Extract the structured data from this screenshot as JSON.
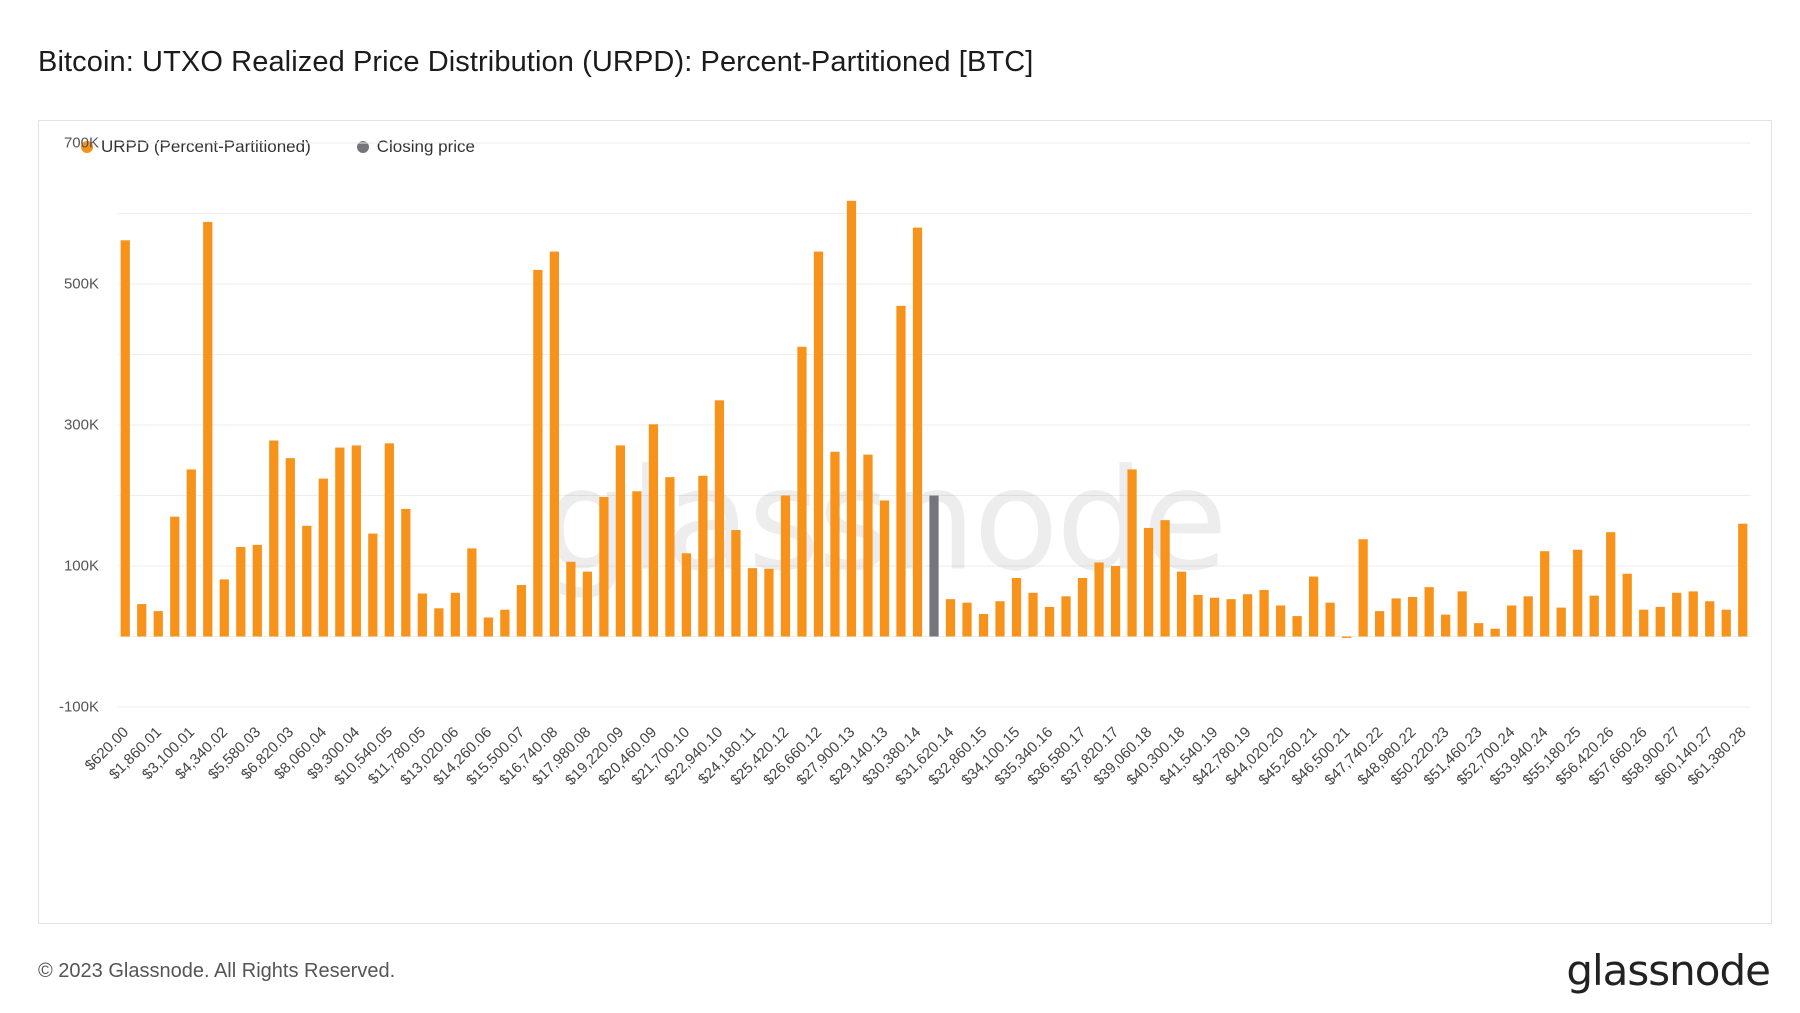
{
  "header": {
    "title": "Bitcoin: UTXO Realized Price Distribution (URPD): Percent-Partitioned [BTC]"
  },
  "legend": [
    {
      "label": "URPD (Percent-Partitioned)",
      "color": "#f7931a"
    },
    {
      "label": "Closing price",
      "color": "#76767a"
    }
  ],
  "watermark": "glassnode",
  "footer": {
    "copyright": "© 2023 Glassnode. All Rights Reserved.",
    "logo": "glassnode"
  },
  "chart_data": {
    "type": "bar",
    "x_tick_labels": [
      "$620.00",
      "$1,860.01",
      "$3,100.01",
      "$4,340.02",
      "$5,580.03",
      "$6,820.03",
      "$8,060.04",
      "$9,300.04",
      "$10,540.05",
      "$11,780.05",
      "$13,020.06",
      "$14,260.06",
      "$15,500.07",
      "$16,740.08",
      "$17,980.08",
      "$19,220.09",
      "$20,460.09",
      "$21,700.10",
      "$22,940.10",
      "$24,180.11",
      "$25,420.12",
      "$26,660.12",
      "$27,900.13",
      "$29,140.13",
      "$30,380.14",
      "$31,620.14",
      "$32,860.15",
      "$34,100.15",
      "$35,340.16",
      "$36,580.17",
      "$37,820.17",
      "$39,060.18",
      "$40,300.18",
      "$41,540.19",
      "$42,780.19",
      "$44,020.20",
      "$45,260.21",
      "$46,500.21",
      "$47,740.22",
      "$48,980.22",
      "$50,220.23",
      "$51,460.23",
      "$52,700.24",
      "$53,940.24",
      "$55,180.25",
      "$56,420.26",
      "$57,660.26",
      "$58,900.27",
      "$60,140.27",
      "$61,380.28"
    ],
    "y_tick_labels": [
      "700K",
      "500K",
      "300K",
      "100K",
      "-100K"
    ],
    "y_ticks": [
      700000,
      500000,
      300000,
      100000,
      -100000
    ],
    "ylim": [
      -100000,
      700000
    ],
    "bin_start": 620.0,
    "bin_width": 620.0,
    "closing_price_index": 49,
    "series": [
      {
        "name": "URPD (Percent-Partitioned)",
        "values": [
          562000,
          46000,
          36000,
          170000,
          237000,
          588000,
          81000,
          127000,
          130000,
          278000,
          253000,
          157000,
          224000,
          268000,
          271000,
          146000,
          274000,
          181000,
          61000,
          40000,
          62000,
          125000,
          27000,
          38000,
          73000,
          520000,
          546000,
          106000,
          92000,
          198000,
          271000,
          206000,
          301000,
          226000,
          118000,
          228000,
          335000,
          151000,
          97000,
          96000,
          200000,
          411000,
          546000,
          262000,
          618000,
          258000,
          193000,
          469000,
          580000,
          200000,
          53000,
          48000,
          32000,
          50000,
          83000,
          62000,
          42000,
          57000,
          83000,
          105000,
          100000,
          237000,
          154000,
          165000,
          92000,
          59000,
          55000,
          53000,
          60000,
          66000,
          44000,
          29000,
          85000,
          48000,
          -2000,
          138000,
          36000,
          54000,
          56000,
          70000,
          31000,
          64000,
          19000,
          11000,
          44000,
          57000,
          121000,
          41000,
          123000,
          58000,
          148000,
          89000,
          38000,
          42000,
          62000,
          64000,
          50000,
          38000,
          160000
        ]
      }
    ]
  }
}
